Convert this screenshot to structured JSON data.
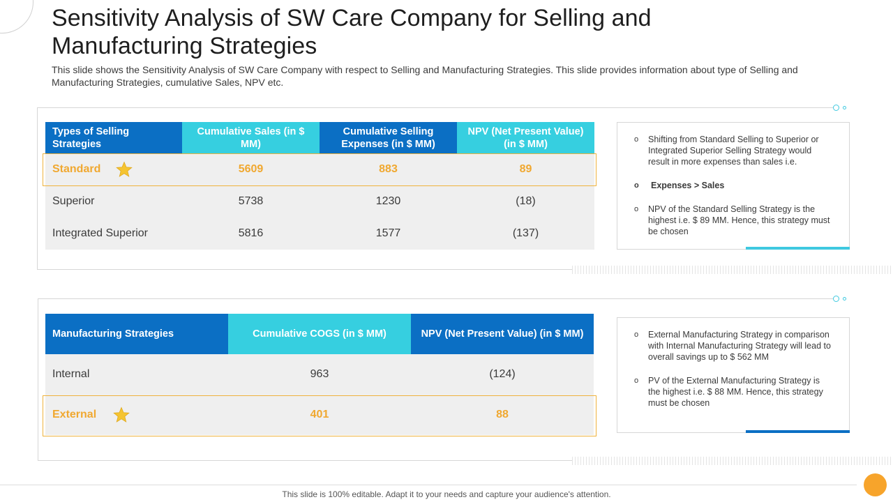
{
  "slide": {
    "title": "Sensitivity Analysis of SW Care Company for Selling and Manufacturing Strategies",
    "subtitle": "This slide shows the Sensitivity Analysis of SW Care Company with respect to Selling and Manufacturing Strategies. This slide provides information about type of Selling and Manufacturing Strategies, cumulative Sales, NPV etc.",
    "footer": "This slide is 100% editable. Adapt it to your needs and capture your audience's attention."
  },
  "colors": {
    "dark_blue": "#0b6fc4",
    "light_blue": "#36cfe0",
    "highlight": "#f0a830",
    "footer_circle": "#f7a42b"
  },
  "selling": {
    "headers": [
      "Types of Selling Strategies",
      "Cumulative Sales (in $ MM)",
      "Cumulative Selling Expenses (in $ MM)",
      "NPV (Net Present Value) (in $ MM)"
    ],
    "rows": [
      {
        "name": "Standard",
        "sales": "5609",
        "expenses": "883",
        "npv": "89",
        "highlight": true
      },
      {
        "name": "Superior",
        "sales": "5738",
        "expenses": "1230",
        "npv": "(18)",
        "highlight": false
      },
      {
        "name": "Integrated Superior",
        "sales": "5816",
        "expenses": "1577",
        "npv": "(137)",
        "highlight": false
      }
    ],
    "notes": [
      "Shifting from Standard Selling to Superior or Integrated Superior Selling Strategy would result in more expenses than sales i.e.",
      "Expenses > Sales",
      "NPV of the Standard Selling Strategy is the highest i.e. $ 89 MM. Hence, this strategy must be chosen"
    ]
  },
  "manufacturing": {
    "headers": [
      "Manufacturing Strategies",
      "Cumulative COGS (in $ MM)",
      "NPV (Net Present Value) (in $ MM)"
    ],
    "rows": [
      {
        "name": "Internal",
        "cogs": "963",
        "npv": "(124)",
        "highlight": false
      },
      {
        "name": "External",
        "cogs": "401",
        "npv": "88",
        "highlight": true
      }
    ],
    "notes": [
      "External Manufacturing Strategy in comparison with Internal Manufacturing Strategy will lead to overall savings up to $ 562 MM",
      "PV of the External Manufacturing Strategy is the highest i.e. $ 88 MM. Hence, this strategy must be chosen"
    ]
  },
  "icons": {
    "star": "star-icon",
    "bullet": "o"
  }
}
